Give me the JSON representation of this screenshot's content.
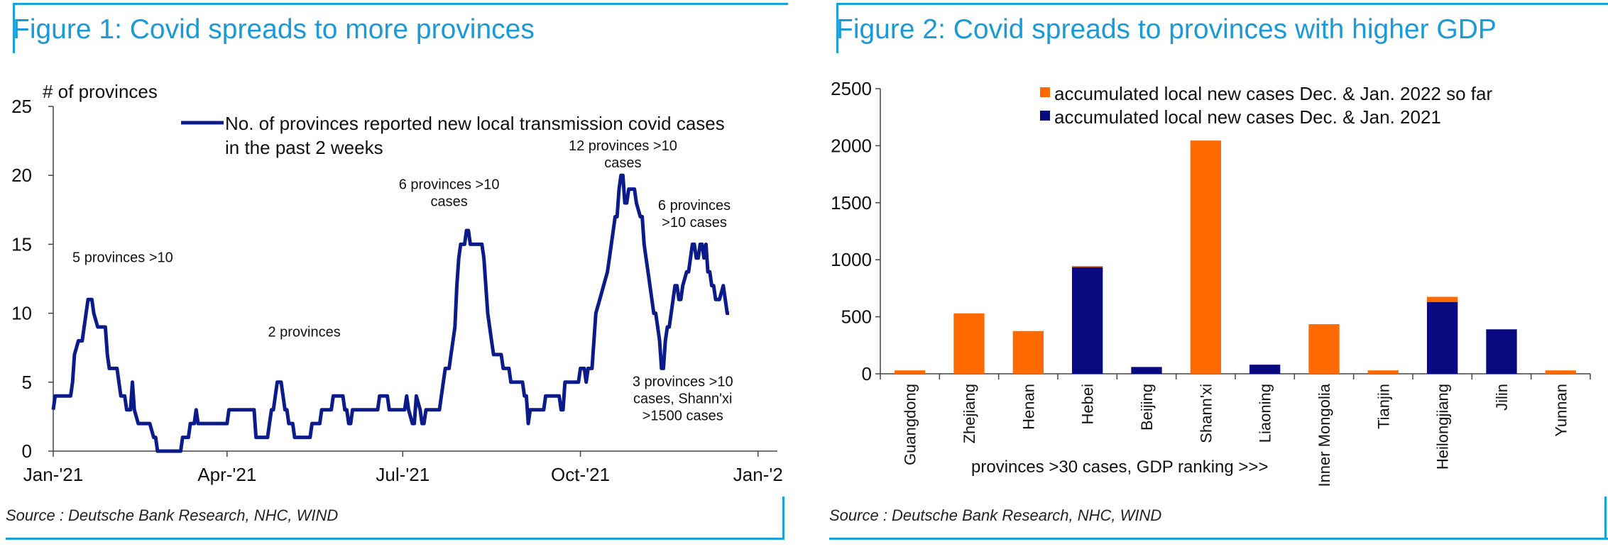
{
  "charts": [
    {
      "title": "Figure 1: Covid spreads to more provinces",
      "source": "Source : Deutsche Bank Research, NHC, WIND"
    },
    {
      "title": "Figure 2: Covid spreads to provinces with higher GDP",
      "source": "Source : Deutsche Bank Research, NHC, WIND"
    }
  ],
  "colors": {
    "accent": "#1ba1dc",
    "line": "#0c1b8a",
    "orange": "#ff6a00",
    "navy": "#0a0a80"
  },
  "chart_data": [
    {
      "type": "line",
      "ylabel": "# of provinces",
      "ylim": [
        0,
        25
      ],
      "yticks": [
        "0",
        "5",
        "10",
        "15",
        "20",
        "25"
      ],
      "xlim": [
        0,
        375
      ],
      "xticks": [
        {
          "label": "Jan-'21",
          "value": 0
        },
        {
          "label": "Apr-'21",
          "value": 90
        },
        {
          "label": "Jul-'21",
          "value": 181
        },
        {
          "label": "Oct-'21",
          "value": 273
        },
        {
          "label": "Jan-'2",
          "value": 365
        }
      ],
      "series": [
        {
          "name": "No. of provinces reported new local transmission covid cases in the past 2 weeks",
          "points": [
            [
              0,
              3
            ],
            [
              1,
              4
            ],
            [
              9,
              4
            ],
            [
              10,
              5
            ],
            [
              11,
              7
            ],
            [
              13,
              8
            ],
            [
              15,
              8
            ],
            [
              16,
              9
            ],
            [
              18,
              11
            ],
            [
              20,
              11
            ],
            [
              21,
              10
            ],
            [
              23,
              9
            ],
            [
              27,
              9
            ],
            [
              28,
              7
            ],
            [
              29,
              6
            ],
            [
              33,
              6
            ],
            [
              34,
              5
            ],
            [
              35,
              4
            ],
            [
              37,
              4
            ],
            [
              38,
              3
            ],
            [
              40,
              3
            ],
            [
              41,
              5
            ],
            [
              42,
              3
            ],
            [
              44,
              2
            ],
            [
              50,
              2
            ],
            [
              52,
              1
            ],
            [
              53,
              1
            ],
            [
              54,
              0
            ],
            [
              66,
              0
            ],
            [
              67,
              1
            ],
            [
              69,
              1
            ],
            [
              70,
              1
            ],
            [
              71,
              2
            ],
            [
              73,
              2
            ],
            [
              74,
              3
            ],
            [
              75,
              2
            ],
            [
              88,
              2
            ],
            [
              90,
              2
            ],
            [
              91,
              3
            ],
            [
              104,
              3
            ],
            [
              105,
              1
            ],
            [
              111,
              1
            ],
            [
              112,
              2
            ],
            [
              113,
              3
            ],
            [
              114,
              3
            ],
            [
              115,
              4
            ],
            [
              116,
              5
            ],
            [
              118,
              5
            ],
            [
              119,
              4
            ],
            [
              120,
              3
            ],
            [
              121,
              3
            ],
            [
              122,
              2
            ],
            [
              124,
              2
            ],
            [
              125,
              1
            ],
            [
              133,
              1
            ],
            [
              134,
              2
            ],
            [
              138,
              2
            ],
            [
              139,
              3
            ],
            [
              144,
              3
            ],
            [
              145,
              4
            ],
            [
              150,
              4
            ],
            [
              151,
              3
            ],
            [
              152,
              3
            ],
            [
              153,
              2
            ],
            [
              154,
              2
            ],
            [
              155,
              3
            ],
            [
              168,
              3
            ],
            [
              169,
              4
            ],
            [
              171,
              4
            ],
            [
              173,
              4
            ],
            [
              174,
              3
            ],
            [
              180,
              3
            ],
            [
              182,
              3
            ],
            [
              183,
              4
            ],
            [
              184,
              3
            ],
            [
              186,
              2
            ],
            [
              187,
              2
            ],
            [
              188,
              4
            ],
            [
              190,
              3
            ],
            [
              191,
              2
            ],
            [
              192,
              2
            ],
            [
              193,
              3
            ],
            [
              200,
              3
            ],
            [
              201,
              4
            ],
            [
              203,
              6
            ],
            [
              205,
              6
            ],
            [
              206,
              7
            ],
            [
              208,
              9
            ],
            [
              209,
              12
            ],
            [
              210,
              14
            ],
            [
              211,
              15
            ],
            [
              212,
              15
            ],
            [
              213,
              15
            ],
            [
              214,
              16
            ],
            [
              215,
              16
            ],
            [
              216,
              15
            ],
            [
              222,
              15
            ],
            [
              223,
              14
            ],
            [
              224,
              12
            ],
            [
              225,
              10
            ],
            [
              226,
              9
            ],
            [
              227,
              8
            ],
            [
              228,
              7
            ],
            [
              232,
              7
            ],
            [
              233,
              6
            ],
            [
              236,
              6
            ],
            [
              237,
              5
            ],
            [
              243,
              5
            ],
            [
              244,
              4
            ],
            [
              245,
              4
            ],
            [
              246,
              2
            ],
            [
              247,
              3
            ],
            [
              254,
              3
            ],
            [
              255,
              4
            ],
            [
              262,
              4
            ],
            [
              263,
              3
            ],
            [
              264,
              3
            ],
            [
              265,
              5
            ],
            [
              272,
              5
            ],
            [
              273,
              6
            ],
            [
              275,
              6
            ],
            [
              276,
              5
            ],
            [
              277,
              6
            ],
            [
              279,
              6
            ],
            [
              280,
              8
            ],
            [
              281,
              10
            ],
            [
              283,
              11
            ],
            [
              285,
              12
            ],
            [
              287,
              13
            ],
            [
              288,
              14
            ],
            [
              289,
              15
            ],
            [
              290,
              16
            ],
            [
              291,
              17
            ],
            [
              292,
              17
            ],
            [
              293,
              19
            ],
            [
              294,
              20
            ],
            [
              295,
              20
            ],
            [
              296,
              18
            ],
            [
              297,
              18
            ],
            [
              298,
              19
            ],
            [
              300,
              19
            ],
            [
              301,
              19
            ],
            [
              302,
              18
            ],
            [
              304,
              17
            ],
            [
              305,
              17
            ],
            [
              306,
              15
            ],
            [
              307,
              14
            ],
            [
              308,
              13
            ],
            [
              309,
              12
            ],
            [
              310,
              11
            ],
            [
              311,
              10
            ],
            [
              312,
              10
            ],
            [
              313,
              9
            ],
            [
              314,
              8
            ],
            [
              315,
              6
            ],
            [
              316,
              6
            ],
            [
              317,
              8
            ],
            [
              318,
              9
            ],
            [
              319,
              9
            ],
            [
              320,
              10
            ],
            [
              321,
              11
            ],
            [
              322,
              12
            ],
            [
              323,
              12
            ],
            [
              324,
              11
            ],
            [
              325,
              11
            ],
            [
              326,
              12
            ],
            [
              328,
              13
            ],
            [
              329,
              13
            ],
            [
              330,
              14
            ],
            [
              331,
              15
            ],
            [
              332,
              15
            ],
            [
              333,
              14
            ],
            [
              334,
              14
            ],
            [
              335,
              15
            ],
            [
              336,
              15
            ],
            [
              337,
              14
            ],
            [
              338,
              15
            ],
            [
              339,
              13
            ],
            [
              340,
              13
            ],
            [
              341,
              12
            ],
            [
              342,
              12
            ],
            [
              343,
              11
            ],
            [
              345,
              11
            ],
            [
              347,
              12
            ],
            [
              348,
              11
            ],
            [
              349,
              10
            ],
            [
              350,
              10
            ]
          ]
        }
      ],
      "annotations": [
        {
          "lines": [
            "5 provinces >10"
          ],
          "anchor": [
            36,
            13.7
          ]
        },
        {
          "lines": [
            "2 provinces"
          ],
          "anchor": [
            130,
            8.3
          ]
        },
        {
          "lines": [
            "6 provinces >10",
            "cases"
          ],
          "anchor": [
            205,
            19.0
          ]
        },
        {
          "lines": [
            "12 provinces >10",
            "cases"
          ],
          "anchor": [
            295,
            21.8
          ]
        },
        {
          "lines": [
            "6 provinces",
            ">10 cases"
          ],
          "anchor": [
            332,
            17.5
          ]
        },
        {
          "lines": [
            "3 provinces >10",
            "cases, Shann'xi",
            ">1500 cases"
          ],
          "anchor": [
            326,
            4.7
          ]
        }
      ]
    },
    {
      "type": "bar",
      "stacked": true,
      "xlabel": "provinces >30 cases, GDP ranking >>>",
      "ylim": [
        0,
        2500
      ],
      "yticks": [
        "0",
        "500",
        "1000",
        "1500",
        "2000",
        "2500"
      ],
      "categories": [
        "Guangdong",
        "Zhejiang",
        "Henan",
        "Hebei",
        "Beijing",
        "Shann'xi",
        "Liaoning",
        "Inner Mongolia",
        "Tianjin",
        "Heilongjiang",
        "Jilin",
        "Yunnan"
      ],
      "series": [
        {
          "name": "accumulated local new cases Dec. & Jan. 2021",
          "color": "#0a0a80",
          "values": [
            0,
            0,
            0,
            935,
            60,
            0,
            80,
            0,
            0,
            630,
            390,
            0
          ]
        },
        {
          "name": "accumulated local new cases Dec. & Jan. 2022 so far",
          "color": "#ff6a00",
          "values": [
            30,
            530,
            375,
            10,
            0,
            2045,
            0,
            435,
            30,
            45,
            0,
            30
          ]
        }
      ],
      "legend_order": [
        "accumulated local new cases Dec. & Jan. 2022 so far",
        "accumulated local new cases Dec. & Jan. 2021"
      ]
    }
  ]
}
